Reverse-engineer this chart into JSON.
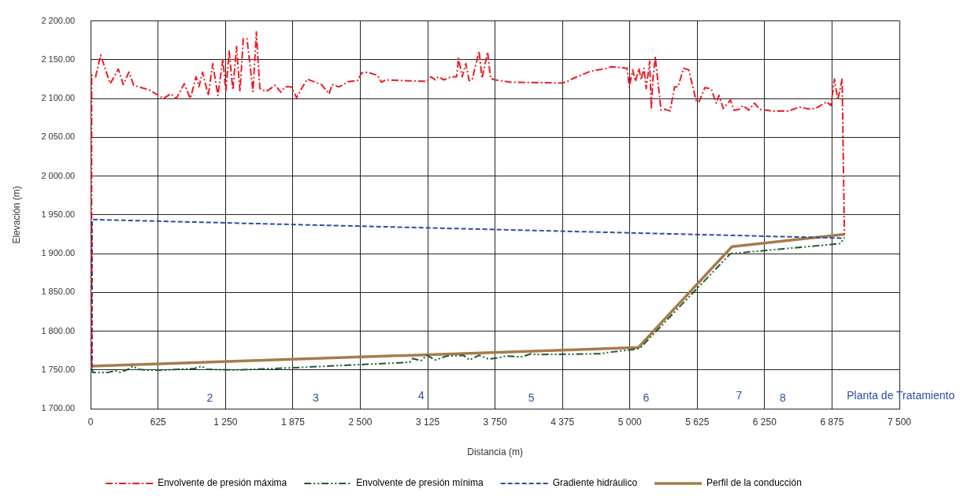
{
  "chart_data": {
    "type": "line",
    "xlabel": "Distancia (m)",
    "ylabel": "Elevación (m)",
    "xlim": [
      0,
      7500
    ],
    "ylim": [
      1700,
      2200
    ],
    "xticks": [
      0,
      625,
      {
        "value": 1250,
        "label": "1 250"
      },
      {
        "value": 1875,
        "label": "1 875"
      },
      {
        "value": 2500,
        "label": "2 500"
      },
      {
        "value": 3125,
        "label": "3 125"
      },
      {
        "value": 3750,
        "label": "3 750"
      },
      {
        "value": 4375,
        "label": "4 375"
      },
      {
        "value": 5000,
        "label": "5 000"
      },
      {
        "value": 5625,
        "label": "5 625"
      },
      {
        "value": 6250,
        "label": "6 250"
      },
      {
        "value": 6875,
        "label": "6 875"
      },
      {
        "value": 7500,
        "label": "7 500"
      }
    ],
    "yticks": [
      {
        "value": 1700,
        "label": "1 700.00"
      },
      {
        "value": 1750,
        "label": "1 750.00"
      },
      {
        "value": 1800,
        "label": "1 800.00"
      },
      {
        "value": 1850,
        "label": "1 850.00"
      },
      {
        "value": 1900,
        "label": "1 900.00"
      },
      {
        "value": 1950,
        "label": "1 950.00"
      },
      {
        "value": 2000,
        "label": "2 000.00"
      },
      {
        "value": 2050,
        "label": "2 050.00"
      },
      {
        "value": 2100,
        "label": "2 100.00"
      },
      {
        "value": 2150,
        "label": "2 150.00"
      },
      {
        "value": 2200,
        "label": "2 200.00"
      }
    ],
    "grid": true,
    "legend": "bottom",
    "marker": "none",
    "series": [
      {
        "name": "Envolvente de presión máxima",
        "color": "#ed1c24",
        "line_style": "dashdot",
        "x": [
          8,
          8,
          45,
          92,
          181,
          255,
          302,
          354,
          399,
          544,
          675,
          741,
          793,
          867,
          924,
          977,
          1003,
          1037,
          1090,
          1132,
          1179,
          1226,
          1253,
          1284,
          1318,
          1352,
          1384,
          1415,
          1449,
          1505,
          1536,
          1568,
          1625,
          1712,
          1764,
          1804,
          1861,
          1909,
          1956,
          2008,
          2140,
          2211,
          2237,
          2303,
          2395,
          2474,
          2513,
          2566,
          2658,
          2697,
          2736,
          3117,
          3156,
          3196,
          3222,
          3274,
          3340,
          3393,
          3411,
          3445,
          3479,
          3510,
          3537,
          3602,
          3629,
          3681,
          3708,
          3752,
          3897,
          4372,
          4422,
          4475,
          4632,
          4790,
          4829,
          4974,
          4995,
          5026,
          5052,
          5084,
          5105,
          5131,
          5152,
          5184,
          5199,
          5215,
          5236,
          5289,
          5328,
          5373,
          5415,
          5446,
          5499,
          5546,
          5617,
          5643,
          5696,
          5730,
          5756,
          5801,
          5827,
          5867,
          5932,
          5966,
          6011,
          6050,
          6103,
          6155,
          6208,
          6313,
          6470,
          6575,
          6680,
          6746,
          6825,
          6864,
          6898,
          6929,
          6969,
          6990
        ],
        "values": [
          1755,
          2130,
          2128,
          2156,
          2119,
          2138,
          2118,
          2134,
          2117,
          2111,
          2100,
          2106,
          2100,
          2119,
          2100,
          2128,
          2115,
          2134,
          2104,
          2145,
          2104,
          2151,
          2109,
          2161,
          2111,
          2167,
          2109,
          2177,
          2177,
          2109,
          2186,
          2113,
          2109,
          2117,
          2108,
          2115,
          2115,
          2101,
          2113,
          2125,
          2118,
          2106,
          2118,
          2115,
          2122,
          2123,
          2133,
          2134,
          2130,
          2121,
          2124,
          2122,
          2128,
          2124,
          2128,
          2124,
          2128,
          2128,
          2152,
          2128,
          2145,
          2123,
          2124,
          2161,
          2126,
          2160,
          2126,
          2124,
          2121,
          2120,
          2122,
          2126,
          2135,
          2139,
          2141,
          2139,
          2115,
          2137,
          2122,
          2139,
          2124,
          2139,
          2113,
          2148,
          2086,
          2127,
          2153,
          2085,
          2086,
          2084,
          2115,
          2115,
          2139,
          2137,
          2096,
          2096,
          2114,
          2113,
          2112,
          2094,
          2104,
          2087,
          2098,
          2085,
          2086,
          2091,
          2085,
          2094,
          2086,
          2084,
          2084,
          2089,
          2086,
          2089,
          2096,
          2091,
          2125,
          2098,
          2125,
          1925
        ]
      },
      {
        "name": "Envolvente de presión mínima",
        "color": "#1e5b2a",
        "line_style": "dashdotdot",
        "x": [
          13,
          18,
          163,
          229,
          276,
          347,
          391,
          438,
          517,
          701,
          806,
          964,
          1029,
          1069,
          1331,
          1883,
          2959,
          2986,
          3064,
          3117,
          3196,
          3301,
          3458,
          3511,
          3602,
          3694,
          3826,
          3846,
          4000,
          4084,
          4140,
          4728,
          4812,
          5008,
          5093,
          5933,
          6955,
          6990
        ],
        "values": [
          1752,
          1747,
          1747,
          1749,
          1747,
          1751,
          1755,
          1751,
          1750,
          1750,
          1751,
          1752,
          1755,
          1751,
          1750,
          1753,
          1760,
          1765,
          1762,
          1769,
          1763,
          1768,
          1769,
          1763,
          1769,
          1764,
          1767,
          1768,
          1767,
          1771,
          1770,
          1771,
          1773,
          1776,
          1778,
          1900,
          1913,
          1921
        ]
      },
      {
        "name": "Gradiente hidráulico",
        "color": "#2e4ea3",
        "line_style": "dashed",
        "x": [
          13,
          13,
          6984
        ],
        "values": [
          1753,
          1944,
          1920
        ]
      },
      {
        "name": "Perfil de la conducción",
        "color": "#a67b4b",
        "line_style": "solid",
        "x": [
          0,
          5078,
          5947,
          6995
        ],
        "values": [
          1755,
          1779,
          1909,
          1925
        ]
      }
    ],
    "annotations": [
      "2",
      "3",
      "4",
      "5",
      "6",
      "7",
      "8",
      "Planta de Tratamiento"
    ]
  }
}
